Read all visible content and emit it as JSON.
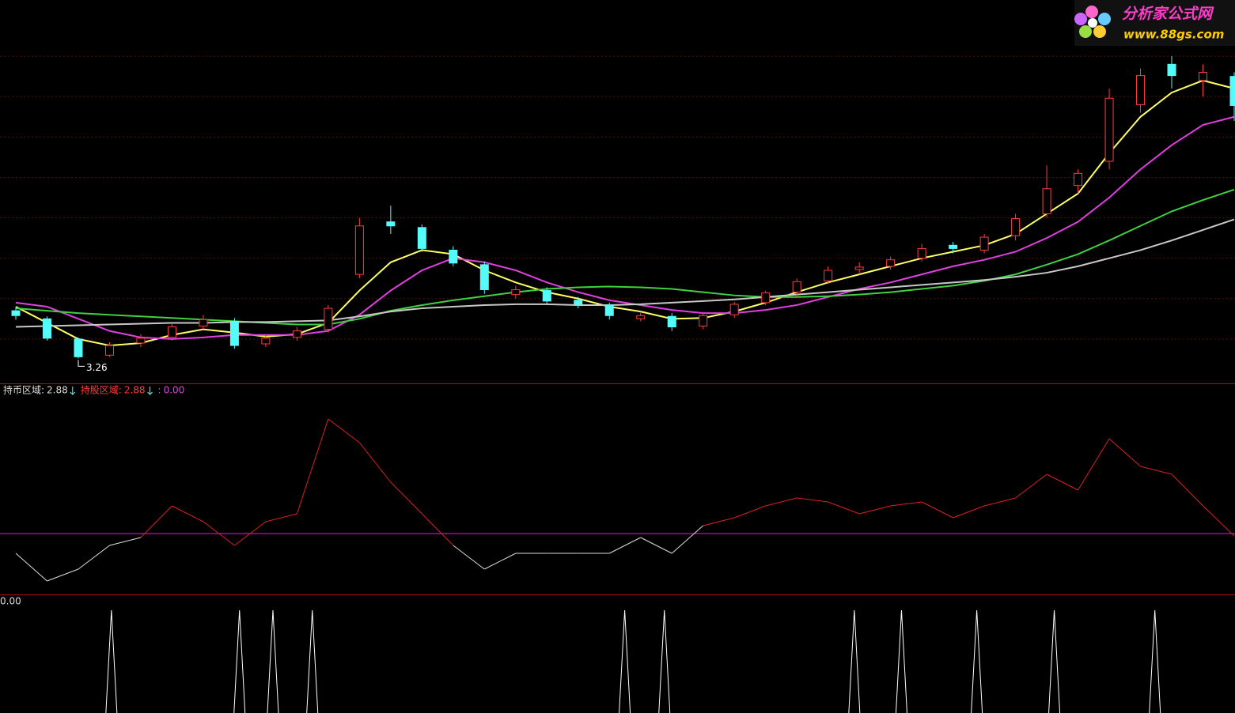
{
  "logo": {
    "title": "分析家公式网",
    "url": "www.88gs.com"
  },
  "chart_data": [
    {
      "type": "candlestick",
      "open": [
        3.85,
        3.75,
        3.5,
        3.3,
        3.45,
        3.52,
        3.66,
        3.72,
        3.44,
        3.52,
        3.62,
        4.3,
        4.95,
        4.88,
        4.6,
        4.42,
        4.05,
        4.1,
        3.98,
        3.92,
        3.75,
        3.78,
        3.66,
        3.8,
        3.95,
        4.08,
        4.22,
        4.36,
        4.4,
        4.5,
        4.66,
        4.6,
        4.78,
        5.05,
        5.4,
        5.7,
        6.4,
        6.9,
        6.7,
        6.75
      ],
      "high": [
        3.9,
        3.78,
        3.52,
        3.46,
        3.56,
        3.7,
        3.8,
        3.76,
        3.55,
        3.65,
        3.92,
        5.0,
        5.15,
        4.92,
        4.65,
        4.46,
        4.16,
        4.14,
        4.02,
        3.95,
        3.84,
        3.82,
        3.82,
        3.96,
        4.1,
        4.25,
        4.4,
        4.45,
        4.52,
        4.68,
        4.7,
        4.8,
        5.05,
        5.65,
        5.6,
        6.6,
        6.85,
        7.0,
        6.9,
        6.8
      ],
      "low": [
        3.74,
        3.48,
        3.26,
        3.28,
        3.4,
        3.48,
        3.62,
        3.38,
        3.4,
        3.48,
        3.58,
        4.25,
        4.8,
        4.58,
        4.4,
        4.06,
        4.0,
        3.92,
        3.88,
        3.74,
        3.72,
        3.6,
        3.62,
        3.76,
        3.92,
        4.02,
        4.18,
        4.3,
        4.36,
        4.46,
        4.56,
        4.56,
        4.72,
        5.0,
        5.3,
        5.6,
        6.3,
        6.6,
        6.5,
        6.2
      ],
      "close": [
        3.79,
        3.51,
        3.28,
        3.42,
        3.51,
        3.65,
        3.74,
        3.42,
        3.51,
        3.6,
        3.88,
        4.9,
        4.9,
        4.62,
        4.44,
        4.11,
        4.11,
        3.97,
        3.93,
        3.79,
        3.79,
        3.65,
        3.79,
        3.93,
        4.07,
        4.21,
        4.35,
        4.39,
        4.48,
        4.62,
        4.62,
        4.76,
        4.99,
        5.36,
        5.55,
        6.48,
        6.76,
        6.76,
        6.8,
        6.39
      ],
      "up_color": "#ff3c3c",
      "down_color": "#54fcfc",
      "series": [
        {
          "color": "#ffff66",
          "values": [
            3.9,
            3.7,
            3.5,
            3.42,
            3.45,
            3.55,
            3.62,
            3.58,
            3.53,
            3.56,
            3.7,
            4.1,
            4.45,
            4.6,
            4.55,
            4.35,
            4.2,
            4.08,
            4.0,
            3.9,
            3.84,
            3.75,
            3.76,
            3.84,
            3.95,
            4.08,
            4.2,
            4.3,
            4.4,
            4.5,
            4.58,
            4.66,
            4.8,
            5.05,
            5.3,
            5.8,
            6.25,
            6.55,
            6.7,
            6.6
          ]
        },
        {
          "color": "#e040e0",
          "values": [
            3.95,
            3.9,
            3.75,
            3.6,
            3.52,
            3.5,
            3.52,
            3.55,
            3.55,
            3.55,
            3.6,
            3.8,
            4.1,
            4.35,
            4.5,
            4.45,
            4.35,
            4.2,
            4.08,
            3.98,
            3.92,
            3.86,
            3.82,
            3.82,
            3.86,
            3.92,
            4.02,
            4.12,
            4.2,
            4.3,
            4.4,
            4.48,
            4.58,
            4.75,
            4.95,
            5.25,
            5.6,
            5.9,
            6.15,
            6.25
          ]
        },
        {
          "color": "#40d040",
          "values": [
            3.88,
            3.85,
            3.82,
            3.8,
            3.78,
            3.76,
            3.74,
            3.72,
            3.7,
            3.68,
            3.68,
            3.75,
            3.85,
            3.92,
            3.98,
            4.03,
            4.08,
            4.12,
            4.14,
            4.15,
            4.14,
            4.12,
            4.08,
            4.04,
            4.02,
            4.02,
            4.03,
            4.05,
            4.08,
            4.12,
            4.16,
            4.22,
            4.3,
            4.42,
            4.55,
            4.72,
            4.9,
            5.08,
            5.22,
            5.35
          ]
        },
        {
          "color": "#c8c8c8",
          "values": [
            3.65,
            3.66,
            3.67,
            3.68,
            3.69,
            3.7,
            3.7,
            3.71,
            3.71,
            3.72,
            3.73,
            3.78,
            3.84,
            3.88,
            3.9,
            3.92,
            3.93,
            3.93,
            3.92,
            3.92,
            3.93,
            3.95,
            3.97,
            3.99,
            4.02,
            4.05,
            4.08,
            4.11,
            4.14,
            4.17,
            4.2,
            4.23,
            4.27,
            4.32,
            4.4,
            4.5,
            4.6,
            4.72,
            4.85,
            4.98
          ]
        }
      ],
      "xlim": [
        0,
        39
      ],
      "ylim": [
        3.0,
        7.5
      ],
      "yticks": [
        3.5,
        4.0,
        4.5,
        5.0,
        5.5,
        6.0,
        6.5,
        7.0
      ],
      "grid": true
    },
    {
      "type": "line",
      "legend": [
        {
          "name": "持币区域:",
          "value": 2.88,
          "color": "#dddddd"
        },
        {
          "name": "持股区域:",
          "value": 2.88,
          "color": "#ff3c3c"
        },
        {
          "name": ":",
          "value": 0,
          "value_label": "0.00",
          "color": "#e040e0"
        }
      ],
      "values": [
        2.0,
        0.6,
        1.2,
        2.4,
        2.8,
        4.4,
        3.6,
        2.4,
        3.6,
        4.0,
        8.8,
        7.6,
        5.6,
        4.0,
        2.4,
        1.2,
        2.0,
        2.0,
        2.0,
        2.0,
        2.8,
        2.0,
        3.4,
        3.8,
        4.4,
        4.8,
        4.6,
        4.0,
        4.4,
        4.6,
        3.8,
        4.4,
        4.8,
        6.0,
        5.2,
        7.8,
        6.4,
        6.0,
        4.4,
        2.88
      ],
      "level": 3,
      "level_color": "#ff00ff",
      "above_color": "#dd2020",
      "below_color": "#dddddd",
      "xlim": [
        0,
        39
      ],
      "ylim": [
        0,
        10
      ]
    },
    {
      "type": "spike",
      "legend": [
        {
          "value": 0,
          "value_label": "0.00",
          "color": "#dddddd"
        }
      ],
      "x": [
        3.06,
        7.16,
        8.23,
        9.49,
        19.49,
        20.76,
        26.84,
        28.35,
        30.76,
        33.24,
        36.46
      ],
      "values": [
        1,
        1,
        1,
        1,
        1,
        1,
        1,
        1,
        1,
        1,
        1
      ],
      "color": "#ffffff",
      "xlim": [
        0,
        39
      ],
      "ylim": [
        0,
        1
      ]
    }
  ]
}
